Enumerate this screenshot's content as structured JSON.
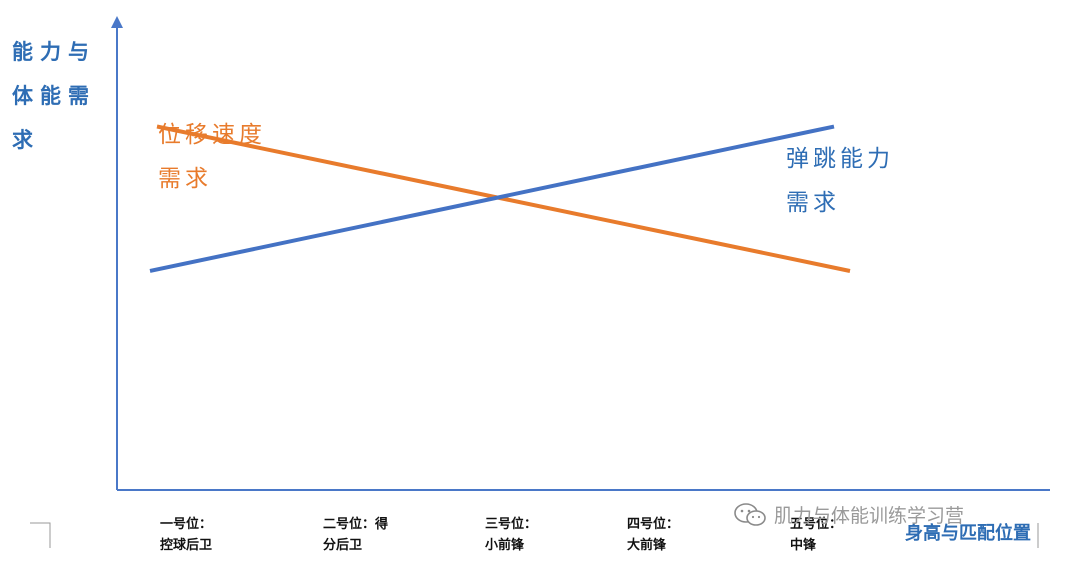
{
  "chart_data": {
    "type": "line",
    "ylabel": "能力与体能需求",
    "xlabel": "身高与匹配位置",
    "categories": [
      "一号位：控球后卫",
      "二号位：得分后卫",
      "三号位：小前锋",
      "四号位：大前锋",
      "五号位：中锋"
    ],
    "category_lines": [
      [
        "一号位：",
        "控球后卫"
      ],
      [
        "二号位：得",
        "分后卫"
      ],
      [
        "三号位：",
        "小前锋"
      ],
      [
        "四号位：",
        "大前锋"
      ],
      [
        "五号位：",
        "中锋"
      ]
    ],
    "series": [
      {
        "name": "位移速度需求",
        "color": "#e87b2c",
        "start": 0.78,
        "end": 0.47
      },
      {
        "name": "弹跳能力需求",
        "color": "#4472c4",
        "start": 0.47,
        "end": 0.78
      }
    ],
    "ylim": [
      0,
      1
    ],
    "grid": false
  },
  "watermark": {
    "text": "肌力与体能训练学习营",
    "icon": "wechat-icon"
  },
  "colors": {
    "axis": "#4a78c8",
    "axis_label": "#2e6db4",
    "speed": "#e87b2c",
    "jump": "#4472c4"
  }
}
